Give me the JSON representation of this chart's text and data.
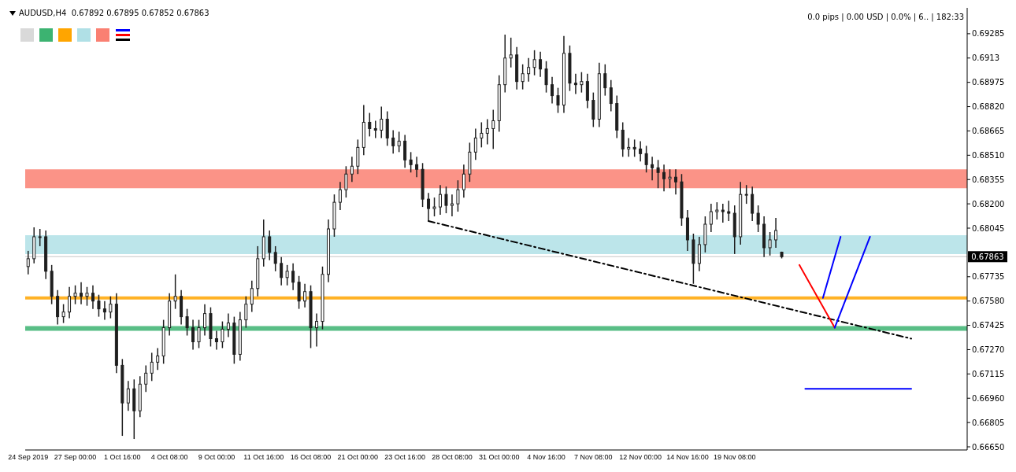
{
  "chart_data": {
    "type": "candlestick",
    "title": "AUDUSD,H4  0.67892 0.67895 0.67852 0.67863",
    "annotations": [
      "0.0 pips | 0.00 USD | 0.0% | 6.. | 182:33"
    ],
    "color": "#1e1e1e",
    "categories": [
      "24 Sep 2019",
      null,
      null,
      null,
      null,
      null,
      null,
      null,
      "27 Sep 00:00",
      null,
      null,
      null,
      null,
      null,
      null,
      null,
      "1 Oct 16:00",
      null,
      null,
      null,
      null,
      null,
      null,
      null,
      "4 Oct 08:00",
      null,
      null,
      null,
      null,
      null,
      null,
      null,
      "9 Oct 00:00",
      null,
      null,
      null,
      null,
      null,
      null,
      null,
      "11 Oct 16:00",
      null,
      null,
      null,
      null,
      null,
      null,
      null,
      "16 Oct 08:00",
      null,
      null,
      null,
      null,
      null,
      null,
      null,
      "21 Oct 00:00",
      null,
      null,
      null,
      null,
      null,
      null,
      null,
      "23 Oct 16:00",
      null,
      null,
      null,
      null,
      null,
      null,
      null,
      "28 Oct 08:00",
      null,
      null,
      null,
      null,
      null,
      null,
      null,
      "31 Oct 00:00",
      null,
      null,
      null,
      null,
      null,
      null,
      null,
      "4 Nov 16:00",
      null,
      null,
      null,
      null,
      null,
      null,
      null,
      "7 Nov 08:00",
      null,
      null,
      null,
      null,
      null,
      null,
      null,
      "12 Nov 00:00",
      null,
      null,
      null,
      null,
      null,
      null,
      null,
      "14 Nov 16:00",
      null,
      null,
      null,
      null,
      null,
      null,
      null,
      "19 Nov 08:00",
      null,
      null,
      null,
      null,
      null,
      null,
      null,
      null,
      null,
      null,
      null,
      null,
      null,
      null,
      null,
      null,
      null,
      null,
      null,
      null,
      null,
      null,
      null,
      null,
      null,
      null,
      null,
      null,
      null,
      null,
      null,
      null,
      null,
      null,
      null,
      null,
      null,
      null,
      null
    ],
    "ohlc": [
      [
        0.678,
        0.679,
        0.6775,
        0.6785
      ],
      [
        0.6785,
        0.6805,
        0.6782,
        0.6799
      ],
      [
        0.6799,
        0.6804,
        0.6793,
        0.6799
      ],
      [
        0.6799,
        0.6803,
        0.6772,
        0.6777
      ],
      [
        0.6777,
        0.6781,
        0.6756,
        0.6761
      ],
      [
        0.6761,
        0.6765,
        0.6743,
        0.6748
      ],
      [
        0.6748,
        0.6756,
        0.6744,
        0.6751
      ],
      [
        0.6751,
        0.6767,
        0.6747,
        0.6761
      ],
      [
        0.6761,
        0.6768,
        0.6756,
        0.6763
      ],
      [
        0.6763,
        0.677,
        0.6756,
        0.6761
      ],
      [
        0.6761,
        0.6767,
        0.6755,
        0.6763
      ],
      [
        0.6763,
        0.6768,
        0.6753,
        0.6758
      ],
      [
        0.6758,
        0.6762,
        0.6748,
        0.6753
      ],
      [
        0.6753,
        0.6758,
        0.6746,
        0.6751
      ],
      [
        0.6751,
        0.6761,
        0.6747,
        0.6756
      ],
      [
        0.6756,
        0.6763,
        0.6712,
        0.6717
      ],
      [
        0.6717,
        0.6721,
        0.6672,
        0.6693
      ],
      [
        0.6693,
        0.6707,
        0.6688,
        0.6702
      ],
      [
        0.6702,
        0.6708,
        0.667,
        0.6688
      ],
      [
        0.6688,
        0.671,
        0.6684,
        0.6705
      ],
      [
        0.6705,
        0.6717,
        0.67,
        0.6712
      ],
      [
        0.6712,
        0.6725,
        0.6707,
        0.6719
      ],
      [
        0.6719,
        0.6728,
        0.6714,
        0.6723
      ],
      [
        0.6723,
        0.6746,
        0.6718,
        0.6741
      ],
      [
        0.6741,
        0.6763,
        0.6736,
        0.6758
      ],
      [
        0.6758,
        0.6775,
        0.6753,
        0.6761
      ],
      [
        0.6761,
        0.6765,
        0.6743,
        0.6748
      ],
      [
        0.6748,
        0.6753,
        0.6736,
        0.6741
      ],
      [
        0.6741,
        0.6746,
        0.6727,
        0.6732
      ],
      [
        0.6732,
        0.6746,
        0.6728,
        0.6741
      ],
      [
        0.6741,
        0.6756,
        0.6736,
        0.675
      ],
      [
        0.675,
        0.6754,
        0.6729,
        0.6734
      ],
      [
        0.6734,
        0.6739,
        0.6727,
        0.6732
      ],
      [
        0.6732,
        0.6745,
        0.6728,
        0.674
      ],
      [
        0.674,
        0.675,
        0.6735,
        0.6744
      ],
      [
        0.6744,
        0.6748,
        0.6718,
        0.6724
      ],
      [
        0.6724,
        0.6751,
        0.672,
        0.6746
      ],
      [
        0.6746,
        0.6761,
        0.6741,
        0.6756
      ],
      [
        0.6756,
        0.6771,
        0.6751,
        0.6766
      ],
      [
        0.6766,
        0.6793,
        0.6761,
        0.6785
      ],
      [
        0.6785,
        0.681,
        0.678,
        0.6799
      ],
      [
        0.6799,
        0.6803,
        0.6784,
        0.6789
      ],
      [
        0.6789,
        0.6793,
        0.6777,
        0.6782
      ],
      [
        0.6782,
        0.6786,
        0.6768,
        0.6773
      ],
      [
        0.6773,
        0.6781,
        0.6768,
        0.6777
      ],
      [
        0.6777,
        0.6782,
        0.6765,
        0.677
      ],
      [
        0.677,
        0.6774,
        0.6753,
        0.6758
      ],
      [
        0.6758,
        0.6769,
        0.6754,
        0.6764
      ],
      [
        0.6764,
        0.6768,
        0.6728,
        0.6741
      ],
      [
        0.6741,
        0.675,
        0.6729,
        0.6745
      ],
      [
        0.6745,
        0.678,
        0.674,
        0.6775
      ],
      [
        0.6775,
        0.681,
        0.677,
        0.6804
      ],
      [
        0.6804,
        0.6826,
        0.6799,
        0.6821
      ],
      [
        0.6821,
        0.6834,
        0.6816,
        0.6829
      ],
      [
        0.6829,
        0.6844,
        0.6824,
        0.6839
      ],
      [
        0.6839,
        0.685,
        0.6834,
        0.6844
      ],
      [
        0.6844,
        0.6861,
        0.6839,
        0.6856
      ],
      [
        0.6856,
        0.6883,
        0.6851,
        0.6872
      ],
      [
        0.6872,
        0.6878,
        0.6863,
        0.6868
      ],
      [
        0.6868,
        0.6873,
        0.6862,
        0.6867
      ],
      [
        0.6867,
        0.6882,
        0.6862,
        0.6874
      ],
      [
        0.6874,
        0.6879,
        0.6857,
        0.6862
      ],
      [
        0.6862,
        0.6867,
        0.6852,
        0.6857
      ],
      [
        0.6857,
        0.6866,
        0.6853,
        0.686
      ],
      [
        0.686,
        0.6864,
        0.6843,
        0.6848
      ],
      [
        0.6848,
        0.6853,
        0.684,
        0.6845
      ],
      [
        0.6845,
        0.685,
        0.6837,
        0.6842
      ],
      [
        0.6842,
        0.6846,
        0.6818,
        0.6823
      ],
      [
        0.6823,
        0.6827,
        0.6809,
        0.6817
      ],
      [
        0.6817,
        0.6824,
        0.6812,
        0.6818
      ],
      [
        0.6818,
        0.6832,
        0.6813,
        0.6826
      ],
      [
        0.6826,
        0.6831,
        0.6814,
        0.6819
      ],
      [
        0.6819,
        0.6826,
        0.6812,
        0.682
      ],
      [
        0.682,
        0.6835,
        0.6815,
        0.6829
      ],
      [
        0.6829,
        0.6845,
        0.6824,
        0.6839
      ],
      [
        0.6839,
        0.6859,
        0.6834,
        0.6853
      ],
      [
        0.6853,
        0.6868,
        0.6848,
        0.6862
      ],
      [
        0.6862,
        0.6872,
        0.6856,
        0.6865
      ],
      [
        0.6865,
        0.6874,
        0.6858,
        0.6868
      ],
      [
        0.6868,
        0.688,
        0.6855,
        0.6873
      ],
      [
        0.6873,
        0.6902,
        0.6866,
        0.6896
      ],
      [
        0.6896,
        0.6928,
        0.6891,
        0.6913
      ],
      [
        0.6913,
        0.6926,
        0.6907,
        0.6915
      ],
      [
        0.6915,
        0.692,
        0.6893,
        0.6898
      ],
      [
        0.6898,
        0.6909,
        0.6893,
        0.6903
      ],
      [
        0.6903,
        0.6913,
        0.6898,
        0.6907
      ],
      [
        0.6907,
        0.6918,
        0.6902,
        0.6912
      ],
      [
        0.6912,
        0.6917,
        0.6901,
        0.6906
      ],
      [
        0.6906,
        0.6911,
        0.6891,
        0.6896
      ],
      [
        0.6896,
        0.6901,
        0.6884,
        0.6889
      ],
      [
        0.6889,
        0.6894,
        0.6878,
        0.6883
      ],
      [
        0.6883,
        0.6927,
        0.6878,
        0.6916
      ],
      [
        0.6916,
        0.6921,
        0.6892,
        0.6897
      ],
      [
        0.6897,
        0.6903,
        0.689,
        0.6896
      ],
      [
        0.6896,
        0.6904,
        0.6891,
        0.6898
      ],
      [
        0.6898,
        0.6903,
        0.6881,
        0.6886
      ],
      [
        0.6886,
        0.6891,
        0.6869,
        0.6874
      ],
      [
        0.6874,
        0.691,
        0.6869,
        0.6903
      ],
      [
        0.6903,
        0.6909,
        0.6889,
        0.6894
      ],
      [
        0.6894,
        0.6899,
        0.6879,
        0.6884
      ],
      [
        0.6884,
        0.6889,
        0.6862,
        0.6867
      ],
      [
        0.6867,
        0.6872,
        0.685,
        0.6855
      ],
      [
        0.6855,
        0.6862,
        0.685,
        0.6856
      ],
      [
        0.6856,
        0.6861,
        0.685,
        0.6855
      ],
      [
        0.6855,
        0.686,
        0.6847,
        0.6852
      ],
      [
        0.6852,
        0.6857,
        0.684,
        0.6845
      ],
      [
        0.6845,
        0.685,
        0.6835,
        0.6843
      ],
      [
        0.6843,
        0.6848,
        0.683,
        0.684
      ],
      [
        0.684,
        0.6845,
        0.6828,
        0.6836
      ],
      [
        0.6836,
        0.6842,
        0.683,
        0.6837
      ],
      [
        0.6837,
        0.6842,
        0.6826,
        0.6834
      ],
      [
        0.6834,
        0.6839,
        0.6806,
        0.6811
      ],
      [
        0.6811,
        0.6816,
        0.679,
        0.6797
      ],
      [
        0.6797,
        0.6801,
        0.6769,
        0.6782
      ],
      [
        0.6782,
        0.6799,
        0.6777,
        0.6794
      ],
      [
        0.6794,
        0.6812,
        0.6789,
        0.6807
      ],
      [
        0.6807,
        0.682,
        0.6802,
        0.6815
      ],
      [
        0.6815,
        0.6821,
        0.681,
        0.6816
      ],
      [
        0.6816,
        0.682,
        0.6808,
        0.6815
      ],
      [
        0.6815,
        0.6822,
        0.6809,
        0.6814
      ],
      [
        0.6814,
        0.6819,
        0.6788,
        0.6799
      ],
      [
        0.6799,
        0.6834,
        0.6794,
        0.6826
      ],
      [
        0.6826,
        0.6832,
        0.682,
        0.6826
      ],
      [
        0.6826,
        0.6831,
        0.6809,
        0.6814
      ],
      [
        0.6814,
        0.6819,
        0.6802,
        0.6807
      ],
      [
        0.6807,
        0.6812,
        0.6786,
        0.6792
      ],
      [
        0.6792,
        0.6802,
        0.6787,
        0.6797
      ],
      [
        0.6797,
        0.6811,
        0.6792,
        0.6803
      ],
      [
        0.67892,
        0.67895,
        0.67852,
        0.67863
      ],
      null,
      null,
      null,
      null,
      null,
      null,
      null,
      null,
      null,
      null,
      null,
      null,
      null,
      null,
      null,
      null,
      null,
      null,
      null,
      null,
      null,
      null,
      null,
      null,
      null,
      null,
      null,
      null,
      null,
      null,
      null
    ],
    "series": [
      {
        "type": "line",
        "color": "#000000",
        "line_style": "dashed",
        "values": [
          null,
          null,
          null,
          null,
          null,
          null,
          null,
          null,
          null,
          null,
          null,
          null,
          null,
          null,
          null,
          null,
          null,
          null,
          null,
          null,
          null,
          null,
          null,
          null,
          null,
          null,
          null,
          null,
          null,
          null,
          null,
          null,
          null,
          null,
          null,
          null,
          null,
          null,
          null,
          null,
          null,
          null,
          null,
          null,
          null,
          null,
          null,
          null,
          null,
          null,
          null,
          null,
          null,
          null,
          null,
          null,
          null,
          null,
          null,
          null,
          null,
          null,
          null,
          null,
          null,
          null,
          null,
          null,
          0.6809,
          null,
          null,
          null,
          null,
          null,
          null,
          null,
          null,
          null,
          null,
          null,
          null,
          null,
          null,
          null,
          null,
          null,
          null,
          null,
          null,
          null,
          null,
          null,
          null,
          null,
          null,
          null,
          null,
          null,
          null,
          null,
          null,
          null,
          null,
          null,
          null,
          null,
          null,
          null,
          null,
          null,
          null,
          null,
          null,
          null,
          null,
          null,
          null,
          null,
          null,
          null,
          null,
          null,
          null,
          null,
          null,
          null,
          null,
          null,
          null,
          null,
          null,
          null,
          null,
          null,
          null,
          null,
          null,
          null,
          null,
          null,
          null,
          null,
          null,
          null,
          null,
          null,
          null,
          null,
          null,
          null,
          0.6734,
          null,
          null,
          null,
          null,
          null,
          null,
          null,
          null,
          null
        ]
      },
      {
        "type": "line",
        "color": "#ff0000",
        "values": [
          null,
          null,
          null,
          null,
          null,
          null,
          null,
          null,
          null,
          null,
          null,
          null,
          null,
          null,
          null,
          null,
          null,
          null,
          null,
          null,
          null,
          null,
          null,
          null,
          null,
          null,
          null,
          null,
          null,
          null,
          null,
          null,
          null,
          null,
          null,
          null,
          null,
          null,
          null,
          null,
          null,
          null,
          null,
          null,
          null,
          null,
          null,
          null,
          null,
          null,
          null,
          null,
          null,
          null,
          null,
          null,
          null,
          null,
          null,
          null,
          null,
          null,
          null,
          null,
          null,
          null,
          null,
          null,
          null,
          null,
          null,
          null,
          null,
          null,
          null,
          null,
          null,
          null,
          null,
          null,
          null,
          null,
          null,
          null,
          null,
          null,
          null,
          null,
          null,
          null,
          null,
          null,
          null,
          null,
          null,
          null,
          null,
          null,
          null,
          null,
          null,
          null,
          null,
          null,
          null,
          null,
          null,
          null,
          null,
          null,
          null,
          null,
          null,
          null,
          null,
          null,
          null,
          null,
          null,
          null,
          null,
          null,
          null,
          null,
          null,
          null,
          null,
          null,
          null,
          null,
          null,
          0.6781,
          null,
          null,
          null,
          null,
          null,
          0.6741,
          null,
          null,
          null,
          null,
          null,
          null,
          null,
          null,
          null,
          null,
          null,
          null,
          null,
          null,
          null,
          null,
          null,
          null,
          null,
          null,
          null,
          null
        ]
      },
      {
        "type": "line",
        "color": "#0000ff",
        "values": [
          null,
          null,
          null,
          null,
          null,
          null,
          null,
          null,
          null,
          null,
          null,
          null,
          null,
          null,
          null,
          null,
          null,
          null,
          null,
          null,
          null,
          null,
          null,
          null,
          null,
          null,
          null,
          null,
          null,
          null,
          null,
          null,
          null,
          null,
          null,
          null,
          null,
          null,
          null,
          null,
          null,
          null,
          null,
          null,
          null,
          null,
          null,
          null,
          null,
          null,
          null,
          null,
          null,
          null,
          null,
          null,
          null,
          null,
          null,
          null,
          null,
          null,
          null,
          null,
          null,
          null,
          null,
          null,
          null,
          null,
          null,
          null,
          null,
          null,
          null,
          null,
          null,
          null,
          null,
          null,
          null,
          null,
          null,
          null,
          null,
          null,
          null,
          null,
          null,
          null,
          null,
          null,
          null,
          null,
          null,
          null,
          null,
          null,
          null,
          null,
          null,
          null,
          null,
          null,
          null,
          null,
          null,
          null,
          null,
          null,
          null,
          null,
          null,
          null,
          null,
          null,
          null,
          null,
          null,
          null,
          null,
          null,
          null,
          null,
          null,
          null,
          null,
          null,
          null,
          null,
          null,
          null,
          null,
          null,
          null,
          0.676,
          null,
          null,
          0.6799,
          null,
          null,
          null,
          null,
          null,
          null,
          null,
          null,
          null,
          null,
          null,
          null,
          null,
          null,
          null,
          null,
          null,
          null,
          null,
          null,
          null
        ]
      },
      {
        "type": "line",
        "color": "#0000ff",
        "values": [
          null,
          null,
          null,
          null,
          null,
          null,
          null,
          null,
          null,
          null,
          null,
          null,
          null,
          null,
          null,
          null,
          null,
          null,
          null,
          null,
          null,
          null,
          null,
          null,
          null,
          null,
          null,
          null,
          null,
          null,
          null,
          null,
          null,
          null,
          null,
          null,
          null,
          null,
          null,
          null,
          null,
          null,
          null,
          null,
          null,
          null,
          null,
          null,
          null,
          null,
          null,
          null,
          null,
          null,
          null,
          null,
          null,
          null,
          null,
          null,
          null,
          null,
          null,
          null,
          null,
          null,
          null,
          null,
          null,
          null,
          null,
          null,
          null,
          null,
          null,
          null,
          null,
          null,
          null,
          null,
          null,
          null,
          null,
          null,
          null,
          null,
          null,
          null,
          null,
          null,
          null,
          null,
          null,
          null,
          null,
          null,
          null,
          null,
          null,
          null,
          null,
          null,
          null,
          null,
          null,
          null,
          null,
          null,
          null,
          null,
          null,
          null,
          null,
          null,
          null,
          null,
          null,
          null,
          null,
          null,
          null,
          null,
          null,
          null,
          null,
          null,
          null,
          null,
          null,
          null,
          null,
          null,
          null,
          null,
          null,
          null,
          null,
          0.6741,
          null,
          null,
          null,
          null,
          null,
          0.6799,
          null,
          null,
          null,
          null,
          null,
          null,
          null,
          null,
          null,
          null,
          null,
          null,
          null,
          null,
          null,
          null
        ]
      },
      {
        "type": "line",
        "color": "#0000ff",
        "values": [
          null,
          null,
          null,
          null,
          null,
          null,
          null,
          null,
          null,
          null,
          null,
          null,
          null,
          null,
          null,
          null,
          null,
          null,
          null,
          null,
          null,
          null,
          null,
          null,
          null,
          null,
          null,
          null,
          null,
          null,
          null,
          null,
          null,
          null,
          null,
          null,
          null,
          null,
          null,
          null,
          null,
          null,
          null,
          null,
          null,
          null,
          null,
          null,
          null,
          null,
          null,
          null,
          null,
          null,
          null,
          null,
          null,
          null,
          null,
          null,
          null,
          null,
          null,
          null,
          null,
          null,
          null,
          null,
          null,
          null,
          null,
          null,
          null,
          null,
          null,
          null,
          null,
          null,
          null,
          null,
          null,
          null,
          null,
          null,
          null,
          null,
          null,
          null,
          null,
          null,
          null,
          null,
          null,
          null,
          null,
          null,
          null,
          null,
          null,
          null,
          null,
          null,
          null,
          null,
          null,
          null,
          null,
          null,
          null,
          null,
          null,
          null,
          null,
          null,
          null,
          null,
          null,
          null,
          null,
          null,
          null,
          null,
          null,
          null,
          null,
          null,
          null,
          null,
          null,
          null,
          null,
          null,
          0.6702,
          null,
          null,
          null,
          null,
          null,
          null,
          null,
          null,
          null,
          null,
          null,
          null,
          null,
          null,
          null,
          null,
          null,
          0.6702,
          null,
          null,
          null,
          null,
          null,
          null,
          null,
          null,
          null
        ]
      }
    ],
    "bands": [
      {
        "axis": "y",
        "from": 0.683,
        "to": 0.6842,
        "color": "#fa8072"
      },
      {
        "axis": "y",
        "from": 0.6788,
        "to": 0.68,
        "color": "#b0e0e6"
      },
      {
        "axis": "y",
        "from": 0.6759,
        "to": 0.6761,
        "color": "#ffa500"
      },
      {
        "axis": "y",
        "from": 0.6739,
        "to": 0.6742,
        "color": "#3cb371"
      }
    ],
    "ref_lines": [
      {
        "axis": "y",
        "value": 0.67863,
        "label": "0.67863",
        "color": "#c8c8c8"
      }
    ],
    "ylim": [
      0.6663,
      0.6945
    ],
    "yticks": [
      0.69285,
      0.6913,
      0.68975,
      {
        "value": 0.6882,
        "label": "0.68820"
      },
      0.68665,
      {
        "value": 0.6851,
        "label": "0.68510"
      },
      0.68355,
      {
        "value": 0.682,
        "label": "0.68200"
      },
      0.68045,
      0.67735,
      {
        "value": 0.6758,
        "label": "0.67580"
      },
      0.67425,
      {
        "value": 0.6727,
        "label": "0.67270"
      },
      0.67115,
      {
        "value": 0.6696,
        "label": "0.66960"
      },
      0.66805,
      {
        "value": 0.6665,
        "label": "0.66650"
      }
    ]
  }
}
